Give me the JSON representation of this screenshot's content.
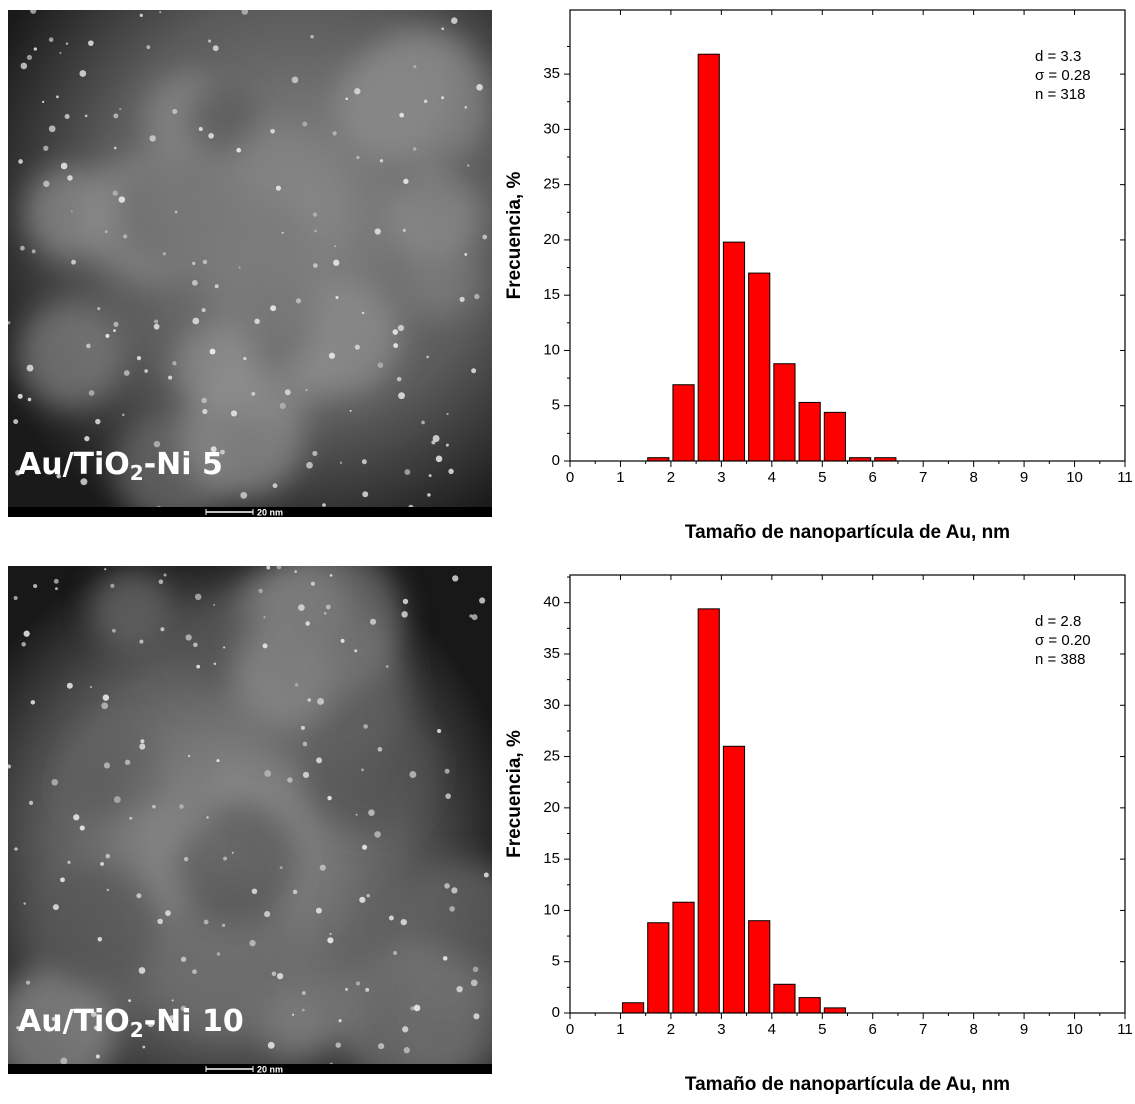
{
  "images": [
    {
      "label": [
        "Au/TiO",
        "2",
        "-Ni 5"
      ],
      "scale_bar": "20 nm"
    },
    {
      "label": [
        "Au/TiO",
        "2",
        "-Ni 10"
      ],
      "scale_bar": "20 nm"
    }
  ],
  "chart_data": [
    {
      "type": "histogram",
      "bins": [
        1.5,
        2,
        2.5,
        3,
        3.5,
        4,
        4.5,
        5,
        5.5,
        6,
        6.5
      ],
      "values": [
        0.3,
        6.9,
        36.8,
        19.8,
        17.0,
        8.8,
        5.3,
        4.4,
        0.3,
        0.3
      ],
      "color": "#ff0000",
      "xlim": [
        0,
        11
      ],
      "xticks": [
        0,
        1,
        2,
        3,
        4,
        5,
        6,
        7,
        8,
        9,
        10,
        11
      ],
      "ylim": [
        0,
        40.8
      ],
      "yticks": [
        0,
        5,
        10,
        15,
        20,
        25,
        30,
        35
      ],
      "x_label": "Tamaño de nanopartícula de Au, nm",
      "y_label": "Frecuencia, %",
      "annotations": [
        "d = 3.3",
        "σ = 0.28",
        "n = 318"
      ]
    },
    {
      "type": "histogram",
      "bins": [
        1,
        1.5,
        2,
        2.5,
        3,
        3.5,
        4,
        4.5,
        5,
        5.5
      ],
      "values": [
        1.0,
        8.8,
        10.8,
        39.4,
        26.0,
        9.0,
        2.8,
        1.5,
        0.5
      ],
      "color": "#ff0000",
      "xlim": [
        0,
        11
      ],
      "xticks": [
        0,
        1,
        2,
        3,
        4,
        5,
        6,
        7,
        8,
        9,
        10,
        11
      ],
      "ylim": [
        0,
        42.7
      ],
      "yticks": [
        0,
        5,
        10,
        15,
        20,
        25,
        30,
        35,
        40
      ],
      "x_label": "Tamaño de nanopartícula de Au, nm",
      "y_label": "Frecuencia, %",
      "annotations": [
        "d = 2.8",
        "σ = 0.20",
        "n = 388"
      ]
    }
  ]
}
